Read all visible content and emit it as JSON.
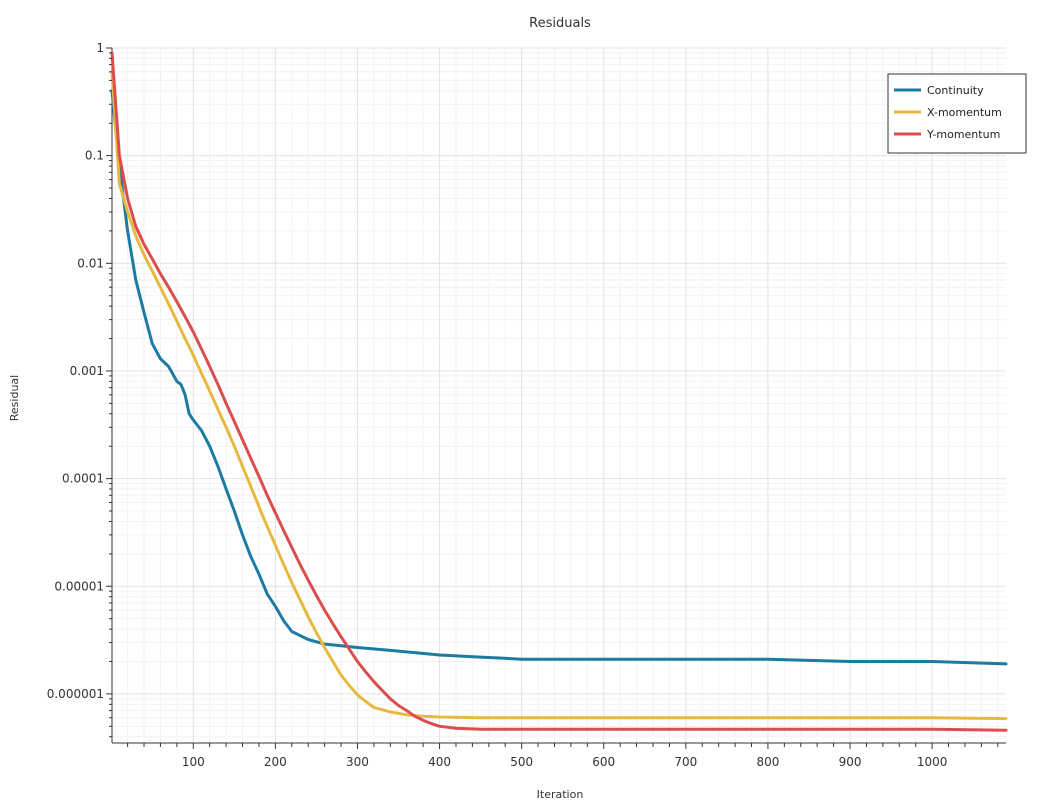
{
  "chart_data": {
    "type": "line",
    "title": "Residuals",
    "xlabel": "Iteration",
    "ylabel": "Residual",
    "x_scale": "linear",
    "y_scale": "log",
    "xlim": [
      1,
      1090
    ],
    "ylim": [
      3.5e-07,
      1
    ],
    "grid": true,
    "legend_position": "top-right",
    "x_ticks": [
      100,
      200,
      300,
      400,
      500,
      600,
      700,
      800,
      900,
      1000
    ],
    "x_tick_labels": [
      "100",
      "200",
      "300",
      "400",
      "500",
      "600",
      "700",
      "800",
      "900",
      "1000"
    ],
    "y_ticks": [
      1,
      0.1,
      0.01,
      0.001,
      0.0001,
      1e-05,
      1e-06
    ],
    "y_tick_labels": [
      "1",
      "0.1",
      "0.01",
      "0.001",
      "0.0001",
      "0.00001",
      "0.000001"
    ],
    "series": [
      {
        "name": "Continuity",
        "color": "#1b7ba3",
        "points": [
          [
            1,
            0.4
          ],
          [
            10,
            0.08
          ],
          [
            20,
            0.02
          ],
          [
            30,
            0.007
          ],
          [
            40,
            0.0035
          ],
          [
            50,
            0.0018
          ],
          [
            60,
            0.0013
          ],
          [
            70,
            0.0011
          ],
          [
            80,
            0.0008
          ],
          [
            85,
            0.00075
          ],
          [
            90,
            0.0006
          ],
          [
            95,
            0.0004
          ],
          [
            100,
            0.00035
          ],
          [
            110,
            0.00028
          ],
          [
            120,
            0.0002
          ],
          [
            130,
            0.00013
          ],
          [
            140,
            8e-05
          ],
          [
            150,
            5e-05
          ],
          [
            160,
            3e-05
          ],
          [
            170,
            1.9e-05
          ],
          [
            180,
            1.3e-05
          ],
          [
            190,
            8.5e-06
          ],
          [
            200,
            6.5e-06
          ],
          [
            210,
            4.8e-06
          ],
          [
            220,
            3.8e-06
          ],
          [
            240,
            3.2e-06
          ],
          [
            260,
            2.9e-06
          ],
          [
            280,
            2.8e-06
          ],
          [
            300,
            2.7e-06
          ],
          [
            350,
            2.5e-06
          ],
          [
            400,
            2.3e-06
          ],
          [
            450,
            2.2e-06
          ],
          [
            500,
            2.1e-06
          ],
          [
            600,
            2.1e-06
          ],
          [
            700,
            2.1e-06
          ],
          [
            800,
            2.1e-06
          ],
          [
            900,
            2e-06
          ],
          [
            1000,
            2e-06
          ],
          [
            1090,
            1.9e-06
          ]
        ]
      },
      {
        "name": "X-momentum",
        "color": "#e8b941",
        "points": [
          [
            1,
            0.6
          ],
          [
            10,
            0.055
          ],
          [
            20,
            0.03
          ],
          [
            30,
            0.018
          ],
          [
            40,
            0.012
          ],
          [
            50,
            0.0085
          ],
          [
            60,
            0.006
          ],
          [
            70,
            0.0042
          ],
          [
            80,
            0.0029
          ],
          [
            90,
            0.002
          ],
          [
            100,
            0.0014
          ],
          [
            110,
            0.00095
          ],
          [
            120,
            0.00065
          ],
          [
            130,
            0.00044
          ],
          [
            140,
            0.0003
          ],
          [
            150,
            0.0002
          ],
          [
            160,
            0.00013
          ],
          [
            170,
            8.5e-05
          ],
          [
            180,
            5.5e-05
          ],
          [
            190,
            3.6e-05
          ],
          [
            200,
            2.4e-05
          ],
          [
            210,
            1.6e-05
          ],
          [
            220,
            1.08e-05
          ],
          [
            230,
            7.5e-06
          ],
          [
            240,
            5.2e-06
          ],
          [
            250,
            3.7e-06
          ],
          [
            260,
            2.7e-06
          ],
          [
            270,
            2e-06
          ],
          [
            280,
            1.5e-06
          ],
          [
            290,
            1.2e-06
          ],
          [
            300,
            9.8e-07
          ],
          [
            310,
            8.5e-07
          ],
          [
            320,
            7.5e-07
          ],
          [
            340,
            6.8e-07
          ],
          [
            360,
            6.4e-07
          ],
          [
            380,
            6.2e-07
          ],
          [
            400,
            6.1e-07
          ],
          [
            450,
            6e-07
          ],
          [
            500,
            6e-07
          ],
          [
            600,
            6e-07
          ],
          [
            700,
            6e-07
          ],
          [
            800,
            6e-07
          ],
          [
            900,
            6e-07
          ],
          [
            1000,
            6e-07
          ],
          [
            1090,
            5.9e-07
          ]
        ]
      },
      {
        "name": "Y-momentum",
        "color": "#dc4e4e",
        "points": [
          [
            1,
            0.9
          ],
          [
            10,
            0.1
          ],
          [
            20,
            0.04
          ],
          [
            30,
            0.022
          ],
          [
            40,
            0.015
          ],
          [
            50,
            0.011
          ],
          [
            60,
            0.008
          ],
          [
            70,
            0.006
          ],
          [
            80,
            0.0044
          ],
          [
            90,
            0.0032
          ],
          [
            100,
            0.0023
          ],
          [
            110,
            0.0016
          ],
          [
            120,
            0.0011
          ],
          [
            130,
            0.00075
          ],
          [
            140,
            0.0005
          ],
          [
            150,
            0.00034
          ],
          [
            160,
            0.00023
          ],
          [
            170,
            0.000155
          ],
          [
            180,
            0.000105
          ],
          [
            190,
            7e-05
          ],
          [
            200,
            4.8e-05
          ],
          [
            210,
            3.3e-05
          ],
          [
            220,
            2.3e-05
          ],
          [
            230,
            1.6e-05
          ],
          [
            240,
            1.14e-05
          ],
          [
            250,
            8.2e-06
          ],
          [
            260,
            6e-06
          ],
          [
            270,
            4.5e-06
          ],
          [
            280,
            3.4e-06
          ],
          [
            290,
            2.6e-06
          ],
          [
            300,
            2e-06
          ],
          [
            310,
            1.6e-06
          ],
          [
            320,
            1.3e-06
          ],
          [
            330,
            1.08e-06
          ],
          [
            340,
            9e-07
          ],
          [
            350,
            7.8e-07
          ],
          [
            360,
            7e-07
          ],
          [
            370,
            6.2e-07
          ],
          [
            380,
            5.7e-07
          ],
          [
            390,
            5.3e-07
          ],
          [
            400,
            5e-07
          ],
          [
            420,
            4.8e-07
          ],
          [
            450,
            4.7e-07
          ],
          [
            500,
            4.7e-07
          ],
          [
            600,
            4.7e-07
          ],
          [
            700,
            4.7e-07
          ],
          [
            800,
            4.7e-07
          ],
          [
            900,
            4.7e-07
          ],
          [
            1000,
            4.7e-07
          ],
          [
            1090,
            4.6e-07
          ]
        ]
      }
    ]
  }
}
